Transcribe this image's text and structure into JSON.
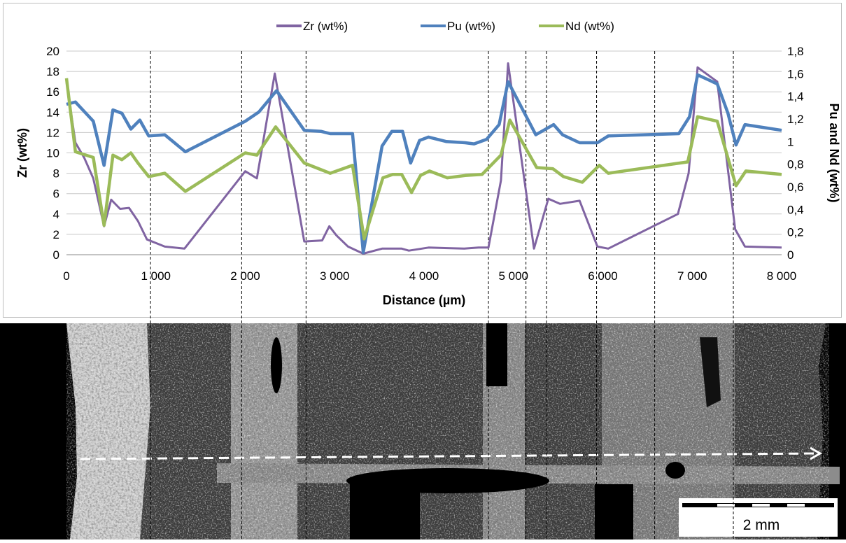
{
  "chart_data": {
    "type": "line",
    "legend_position": "top",
    "xlabel": "Distance (µm)",
    "ylabel": "Zr (wt%)",
    "y2label": "Pu and Nd (wt%)",
    "xlim": [
      0,
      8000
    ],
    "ylim": [
      0,
      20
    ],
    "y2lim": [
      0,
      1.8
    ],
    "x_ticks": [
      "0",
      "1 000",
      "2 000",
      "3 000",
      "4 000",
      "5 000",
      "6 000",
      "7 000",
      "8 000"
    ],
    "y_ticks": [
      "0",
      "2",
      "4",
      "6",
      "8",
      "10",
      "12",
      "14",
      "16",
      "18",
      "20"
    ],
    "y2_ticks": [
      "0",
      "0,2",
      "0,4",
      "0,6",
      "0,8",
      "1",
      "1,2",
      "1,4",
      "1,6",
      "1,8"
    ],
    "grid": "horizontal",
    "series": [
      {
        "name": "Zr (wt%)",
        "axis": "left",
        "color": "#8064a2",
        "points": [
          [
            0,
            17
          ],
          [
            100,
            11
          ],
          [
            200,
            9.5
          ],
          [
            300,
            7.5
          ],
          [
            420,
            2.8
          ],
          [
            500,
            5.4
          ],
          [
            600,
            4.5
          ],
          [
            700,
            4.6
          ],
          [
            800,
            3.3
          ],
          [
            900,
            1.5
          ],
          [
            1100,
            0.8
          ],
          [
            1320,
            0.6
          ],
          [
            2000,
            8.2
          ],
          [
            2130,
            7.5
          ],
          [
            2330,
            17.8
          ],
          [
            2660,
            1.3
          ],
          [
            2860,
            1.4
          ],
          [
            2940,
            2.8
          ],
          [
            3020,
            1.9
          ],
          [
            3150,
            0.8
          ],
          [
            3320,
            0.1
          ],
          [
            3530,
            0.6
          ],
          [
            3750,
            0.6
          ],
          [
            3830,
            0.4
          ],
          [
            4050,
            0.7
          ],
          [
            4450,
            0.6
          ],
          [
            4610,
            0.7
          ],
          [
            4720,
            0.7
          ],
          [
            4860,
            7.3
          ],
          [
            4940,
            18.8
          ],
          [
            5230,
            0.6
          ],
          [
            5390,
            5.5
          ],
          [
            5520,
            5.0
          ],
          [
            5740,
            5.3
          ],
          [
            5940,
            0.8
          ],
          [
            6060,
            0.6
          ],
          [
            6840,
            4.0
          ],
          [
            6960,
            8.0
          ],
          [
            7060,
            18.4
          ],
          [
            7280,
            17.0
          ],
          [
            7480,
            2.5
          ],
          [
            7590,
            0.8
          ],
          [
            8000,
            0.7
          ]
        ]
      },
      {
        "name": "Pu (wt%)",
        "axis": "right",
        "color": "#4f81bd",
        "points": [
          [
            0,
            1.33
          ],
          [
            100,
            1.35
          ],
          [
            300,
            1.18
          ],
          [
            420,
            0.79
          ],
          [
            520,
            1.28
          ],
          [
            620,
            1.25
          ],
          [
            720,
            1.11
          ],
          [
            820,
            1.19
          ],
          [
            920,
            1.05
          ],
          [
            1100,
            1.06
          ],
          [
            1330,
            0.91
          ],
          [
            2000,
            1.18
          ],
          [
            2150,
            1.26
          ],
          [
            2350,
            1.45
          ],
          [
            2660,
            1.1
          ],
          [
            2850,
            1.09
          ],
          [
            2950,
            1.07
          ],
          [
            3200,
            1.07
          ],
          [
            3320,
            0.02
          ],
          [
            3530,
            0.96
          ],
          [
            3640,
            1.09
          ],
          [
            3760,
            1.09
          ],
          [
            3850,
            0.81
          ],
          [
            3950,
            1.01
          ],
          [
            4050,
            1.04
          ],
          [
            4250,
            1.0
          ],
          [
            4460,
            0.99
          ],
          [
            4560,
            0.98
          ],
          [
            4700,
            1.02
          ],
          [
            4840,
            1.15
          ],
          [
            4940,
            1.53
          ],
          [
            5250,
            1.06
          ],
          [
            5450,
            1.15
          ],
          [
            5550,
            1.06
          ],
          [
            5740,
            0.99
          ],
          [
            5940,
            0.99
          ],
          [
            6060,
            1.05
          ],
          [
            6850,
            1.07
          ],
          [
            6970,
            1.22
          ],
          [
            7060,
            1.59
          ],
          [
            7280,
            1.51
          ],
          [
            7400,
            1.25
          ],
          [
            7490,
            0.97
          ],
          [
            7590,
            1.15
          ],
          [
            8000,
            1.1
          ]
        ]
      },
      {
        "name": "Nd (wt%)",
        "axis": "right",
        "color": "#9bbb59",
        "points": [
          [
            0,
            1.56
          ],
          [
            100,
            0.91
          ],
          [
            300,
            0.86
          ],
          [
            420,
            0.26
          ],
          [
            520,
            0.88
          ],
          [
            620,
            0.84
          ],
          [
            720,
            0.9
          ],
          [
            800,
            0.81
          ],
          [
            920,
            0.69
          ],
          [
            1100,
            0.72
          ],
          [
            1330,
            0.56
          ],
          [
            2000,
            0.9
          ],
          [
            2130,
            0.88
          ],
          [
            2340,
            1.13
          ],
          [
            2660,
            0.81
          ],
          [
            2950,
            0.72
          ],
          [
            3200,
            0.79
          ],
          [
            3330,
            0.14
          ],
          [
            3540,
            0.68
          ],
          [
            3650,
            0.71
          ],
          [
            3750,
            0.71
          ],
          [
            3860,
            0.55
          ],
          [
            3960,
            0.7
          ],
          [
            4060,
            0.74
          ],
          [
            4260,
            0.68
          ],
          [
            4460,
            0.7
          ],
          [
            4650,
            0.71
          ],
          [
            4860,
            0.88
          ],
          [
            4960,
            1.19
          ],
          [
            5260,
            0.77
          ],
          [
            5440,
            0.76
          ],
          [
            5560,
            0.69
          ],
          [
            5770,
            0.64
          ],
          [
            5960,
            0.79
          ],
          [
            6060,
            0.72
          ],
          [
            6950,
            0.82
          ],
          [
            7060,
            1.22
          ],
          [
            7280,
            1.18
          ],
          [
            7490,
            0.61
          ],
          [
            7600,
            0.74
          ],
          [
            8000,
            0.71
          ]
        ]
      }
    ],
    "boundary_lines_x": [
      940,
      1960,
      2680,
      4720,
      5140,
      5370,
      5930,
      6580,
      7460
    ]
  },
  "micrograph": {
    "scale_bar_label": "2 mm"
  }
}
